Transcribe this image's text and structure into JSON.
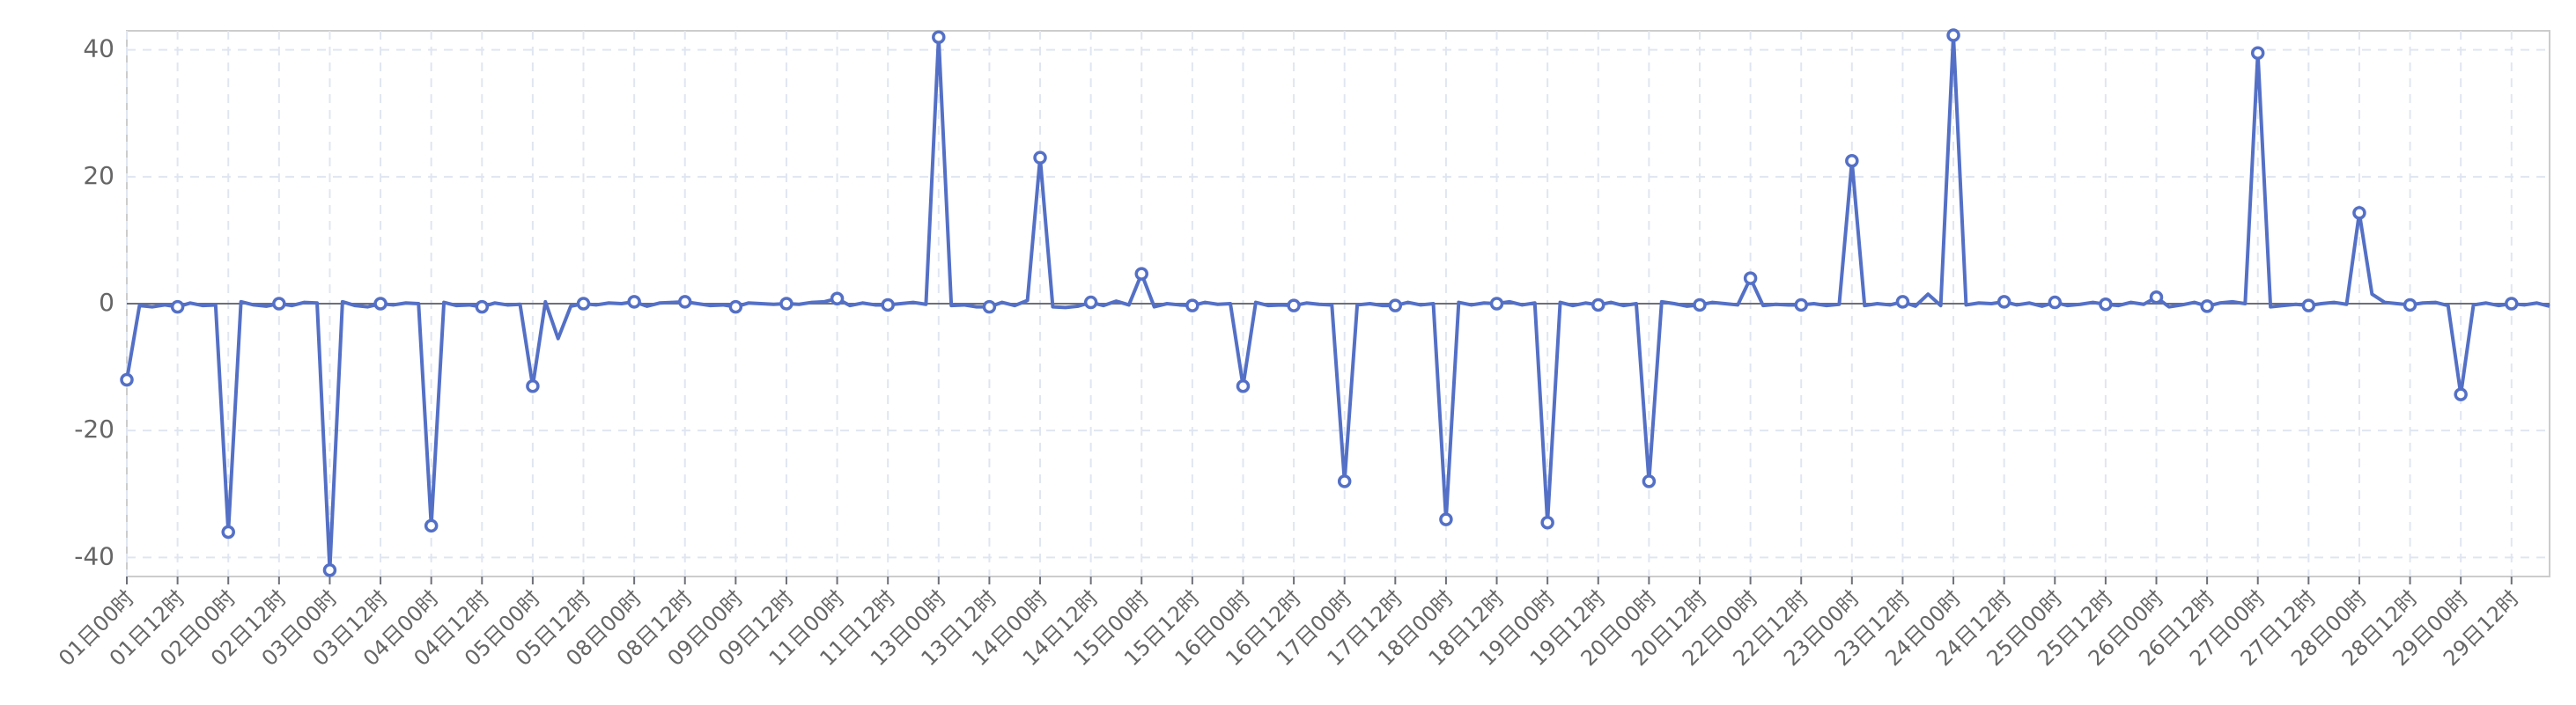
{
  "chart_data": {
    "type": "line",
    "color": "#5470c6",
    "grid": true,
    "ylim": [
      -43,
      43
    ],
    "yticks": [
      -40,
      -20,
      0,
      20,
      40
    ],
    "categories": [
      "01日00时",
      null,
      null,
      null,
      "01日12时",
      null,
      null,
      null,
      "02日00时",
      null,
      null,
      null,
      "02日12时",
      null,
      null,
      null,
      "03日00时",
      null,
      null,
      null,
      "03日12时",
      null,
      null,
      null,
      "04日00时",
      null,
      null,
      null,
      "04日12时",
      null,
      null,
      null,
      "05日00时",
      null,
      null,
      null,
      "05日12时",
      null,
      null,
      null,
      "08日00时",
      null,
      null,
      null,
      "08日12时",
      null,
      null,
      null,
      "09日00时",
      null,
      null,
      null,
      "09日12时",
      null,
      null,
      null,
      "11日00时",
      null,
      null,
      null,
      "11日12时",
      null,
      null,
      null,
      "13日00时",
      null,
      null,
      null,
      "13日12时",
      null,
      null,
      null,
      "14日00时",
      null,
      null,
      null,
      "14日12时",
      null,
      null,
      null,
      "15日00时",
      null,
      null,
      null,
      "15日12时",
      null,
      null,
      null,
      "16日00时",
      null,
      null,
      null,
      "16日12时",
      null,
      null,
      null,
      "17日00时",
      null,
      null,
      null,
      "17日12时",
      null,
      null,
      null,
      "18日00时",
      null,
      null,
      null,
      "18日12时",
      null,
      null,
      null,
      "19日00时",
      null,
      null,
      null,
      "19日12时",
      null,
      null,
      null,
      "20日00时",
      null,
      null,
      null,
      "20日12时",
      null,
      null,
      null,
      "22日00时",
      null,
      null,
      null,
      "22日12时",
      null,
      null,
      null,
      "23日00时",
      null,
      null,
      null,
      "23日12时",
      null,
      null,
      null,
      "24日00时",
      null,
      null,
      null,
      "24日12时",
      null,
      null,
      null,
      "25日00时",
      null,
      null,
      null,
      "25日12时",
      null,
      null,
      null,
      "26日00时",
      null,
      null,
      null,
      "26日12时",
      null,
      null,
      null,
      "27日00时",
      null,
      null,
      null,
      "27日12时",
      null,
      null,
      null,
      "28日00时",
      null,
      null,
      null,
      "28日12时",
      null,
      null,
      null,
      "29日00时",
      null,
      null,
      null,
      "29日12时",
      null,
      null,
      null
    ],
    "values": [
      -12,
      -0.3,
      -0.5,
      -0.2,
      -0.5,
      0.1,
      -0.3,
      -0.2,
      -36,
      0.3,
      -0.2,
      -0.4,
      0,
      -0.3,
      0.2,
      0.1,
      -42,
      0.3,
      -0.3,
      -0.5,
      0,
      -0.2,
      0.1,
      0,
      -35,
      0.2,
      -0.3,
      -0.2,
      -0.5,
      0.1,
      -0.2,
      -0.1,
      -13,
      0.3,
      -5.5,
      -0.4,
      0,
      -0.2,
      0.1,
      0,
      0.3,
      -0.4,
      0.1,
      0.2,
      0.3,
      0,
      -0.3,
      -0.2,
      -0.5,
      0.1,
      0,
      -0.1,
      0,
      -0.1,
      0.2,
      0.3,
      0.8,
      -0.3,
      0.1,
      -0.2,
      -0.2,
      0,
      0.2,
      -0.1,
      42,
      -0.3,
      -0.2,
      -0.5,
      -0.5,
      0.2,
      -0.3,
      0.5,
      23,
      -0.5,
      -0.6,
      -0.4,
      0.2,
      -0.3,
      0.4,
      -0.2,
      4.7,
      -0.5,
      0,
      -0.2,
      -0.3,
      0.2,
      -0.1,
      0,
      -13,
      0.2,
      -0.3,
      -0.2,
      -0.3,
      0.1,
      -0.1,
      -0.2,
      -28,
      -0.2,
      0,
      -0.3,
      -0.3,
      0.2,
      -0.2,
      0,
      -34,
      0.2,
      -0.2,
      0.1,
      0,
      0.3,
      -0.2,
      0.1,
      -34.5,
      0.2,
      -0.3,
      0.1,
      -0.2,
      0.2,
      -0.3,
      0,
      -28,
      0.3,
      0,
      -0.4,
      -0.2,
      0.2,
      0,
      -0.2,
      4,
      -0.3,
      -0.1,
      -0.2,
      -0.2,
      0,
      -0.3,
      -0.1,
      22.5,
      -0.3,
      0,
      -0.2,
      0.3,
      -0.4,
      1.5,
      -0.3,
      42.3,
      -0.2,
      0.1,
      0,
      0.3,
      -0.2,
      0.1,
      -0.4,
      0.2,
      -0.3,
      -0.1,
      0.2,
      -0.1,
      -0.3,
      0.2,
      -0.1,
      1,
      -0.5,
      -0.2,
      0.2,
      -0.4,
      0.1,
      0.3,
      0,
      39.5,
      -0.5,
      -0.3,
      -0.1,
      -0.3,
      0,
      0.2,
      -0.1,
      14.3,
      1.5,
      0.2,
      0,
      -0.2,
      0.1,
      0.2,
      -0.3,
      -14.3,
      -0.2,
      0.1,
      -0.3,
      0,
      -0.2,
      0.1,
      -0.4
    ]
  }
}
